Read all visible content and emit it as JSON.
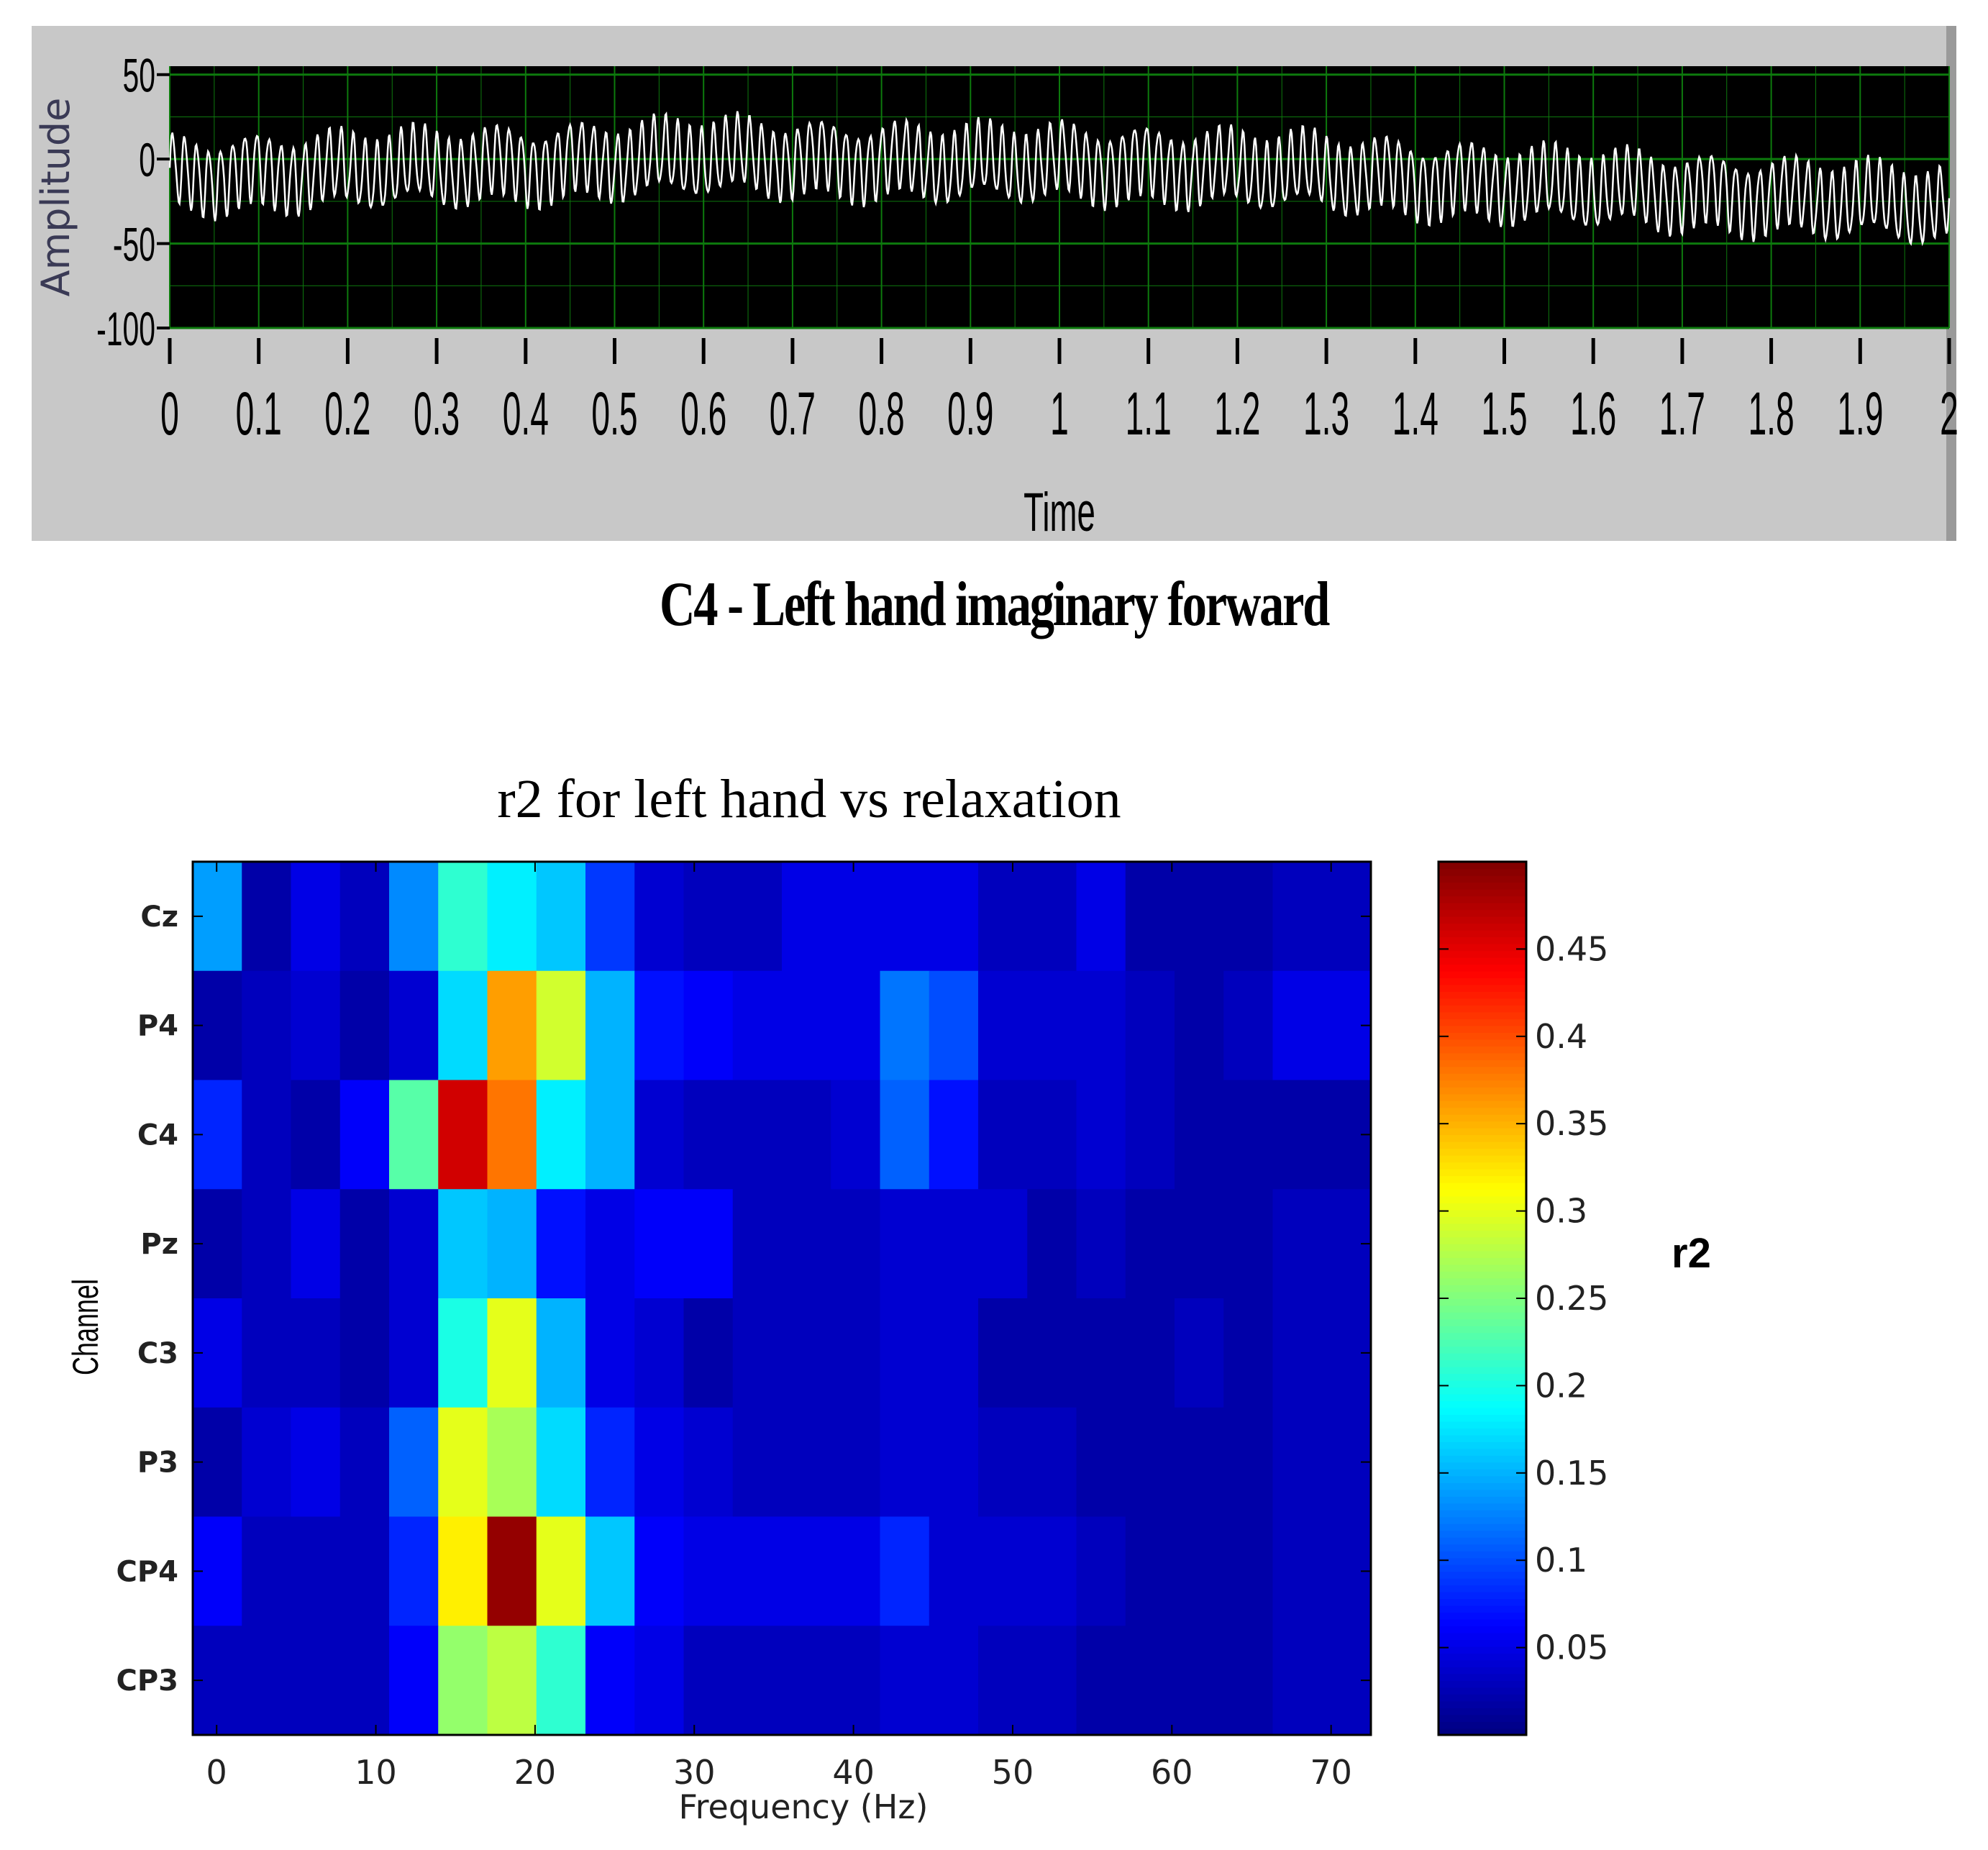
{
  "top_caption": "C4 - Left hand imaginary forward",
  "chart_data": [
    {
      "type": "line",
      "title": "",
      "xlabel": "Time",
      "ylabel": "Amplitude",
      "xlim": [
        0,
        2
      ],
      "ylim": [
        -100,
        55
      ],
      "x_ticks": [
        "0",
        "0.1",
        "0.2",
        "0.3",
        "0.4",
        "0.5",
        "0.6",
        "0.7",
        "0.8",
        "0.9",
        "1",
        "1.1",
        "1.2",
        "1.3",
        "1.4",
        "1.5",
        "1.6",
        "1.7",
        "1.8",
        "1.9",
        "2"
      ],
      "y_ticks": [
        "50",
        "0",
        "-50",
        "-100"
      ],
      "grid": true,
      "colors": {
        "background": "#000000",
        "grid": "#0d7a0d",
        "line": "#ffffff"
      },
      "series": [
        {
          "oscillation_hz": 74,
          "amplitude": 20,
          "trend": {
            "x": [
              0,
              0.3,
              0.55,
              0.6,
              0.9,
              1.0,
              1.3,
              1.5,
              1.8,
              2.0
            ],
            "y": [
              -10,
              -5,
              0,
              2,
              -3,
              -2,
              -8,
              -15,
              -22,
              -28
            ]
          }
        }
      ]
    },
    {
      "type": "heatmap",
      "title": "r2 for left hand vs relaxation",
      "xlabel": "Frequency (Hz)",
      "ylabel": "Channel",
      "x_ticks": [
        "0",
        "10",
        "20",
        "30",
        "40",
        "50",
        "60",
        "70"
      ],
      "xlim": [
        -1.5,
        72.5
      ],
      "bin_hz": 3,
      "y_categories": [
        "Cz",
        "P4",
        "C4",
        "Pz",
        "C3",
        "P3",
        "CP4",
        "CP3"
      ],
      "colorbar_label": "r2",
      "colorbar_ticks": [
        "0.05",
        "0.1",
        "0.15",
        "0.2",
        "0.25",
        "0.3",
        "0.35",
        "0.4",
        "0.45"
      ],
      "colorbar_range": [
        0,
        0.5
      ],
      "colormap": "jet",
      "values": [
        [
          0.14,
          0.02,
          0.05,
          0.03,
          0.13,
          0.21,
          0.18,
          0.16,
          0.09,
          0.04,
          0.03,
          0.03,
          0.05,
          0.05,
          0.05,
          0.05,
          0.03,
          0.03,
          0.05,
          0.02,
          0.02,
          0.02,
          0.03,
          0.03
        ],
        [
          0.02,
          0.03,
          0.04,
          0.02,
          0.04,
          0.17,
          0.36,
          0.29,
          0.15,
          0.07,
          0.06,
          0.05,
          0.05,
          0.05,
          0.12,
          0.1,
          0.04,
          0.04,
          0.04,
          0.03,
          0.02,
          0.03,
          0.05,
          0.05
        ],
        [
          0.08,
          0.03,
          0.02,
          0.06,
          0.23,
          0.46,
          0.38,
          0.18,
          0.15,
          0.04,
          0.03,
          0.03,
          0.03,
          0.04,
          0.11,
          0.07,
          0.03,
          0.03,
          0.04,
          0.03,
          0.02,
          0.02,
          0.02,
          0.02
        ],
        [
          0.02,
          0.03,
          0.05,
          0.02,
          0.04,
          0.16,
          0.15,
          0.07,
          0.05,
          0.06,
          0.06,
          0.03,
          0.03,
          0.03,
          0.04,
          0.04,
          0.04,
          0.02,
          0.03,
          0.02,
          0.02,
          0.02,
          0.03,
          0.03
        ],
        [
          0.05,
          0.03,
          0.03,
          0.02,
          0.04,
          0.2,
          0.3,
          0.15,
          0.05,
          0.04,
          0.02,
          0.03,
          0.03,
          0.03,
          0.04,
          0.04,
          0.02,
          0.02,
          0.02,
          0.02,
          0.03,
          0.02,
          0.03,
          0.03
        ],
        [
          0.02,
          0.04,
          0.05,
          0.03,
          0.11,
          0.3,
          0.27,
          0.17,
          0.08,
          0.05,
          0.04,
          0.03,
          0.03,
          0.03,
          0.04,
          0.04,
          0.03,
          0.03,
          0.02,
          0.02,
          0.02,
          0.02,
          0.03,
          0.03
        ],
        [
          0.06,
          0.03,
          0.03,
          0.03,
          0.08,
          0.32,
          0.49,
          0.3,
          0.16,
          0.06,
          0.05,
          0.05,
          0.05,
          0.05,
          0.08,
          0.04,
          0.04,
          0.04,
          0.03,
          0.02,
          0.02,
          0.02,
          0.03,
          0.03
        ],
        [
          0.03,
          0.03,
          0.03,
          0.03,
          0.06,
          0.26,
          0.28,
          0.21,
          0.06,
          0.05,
          0.03,
          0.03,
          0.03,
          0.03,
          0.04,
          0.04,
          0.03,
          0.03,
          0.02,
          0.02,
          0.02,
          0.02,
          0.03,
          0.03
        ]
      ]
    }
  ]
}
